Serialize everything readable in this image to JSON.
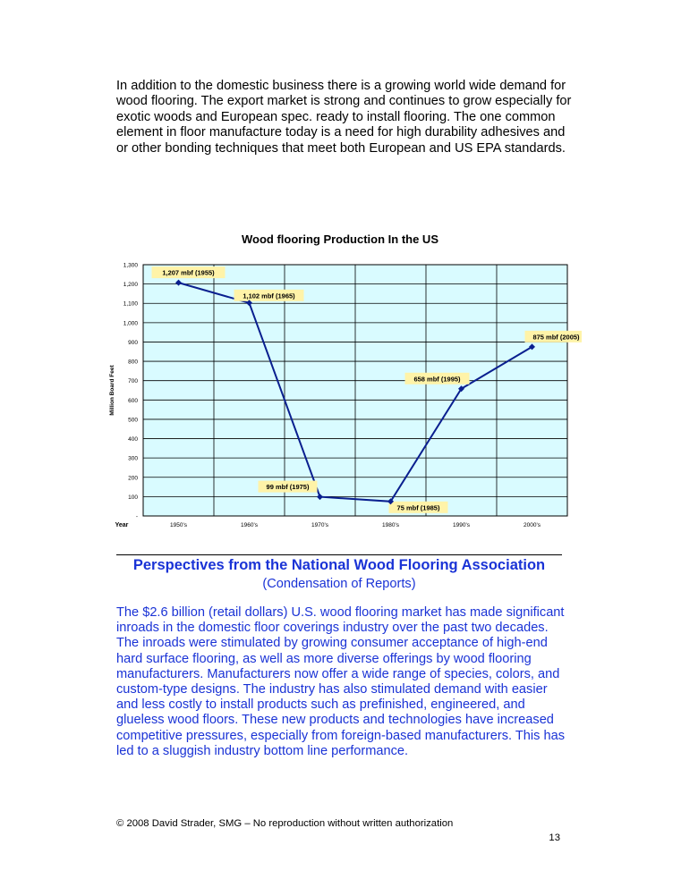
{
  "intro": {
    "paragraph": "In addition to the domestic business there is a growing world wide demand for wood flooring.  The export market is strong and continues to grow especially for exotic woods and European spec. ready to install flooring. The one common element in floor manufacture today is a need for high durability adhesives and or other bonding techniques that meet both European and US EPA standards."
  },
  "chart_data": {
    "type": "line",
    "title": "Wood flooring Production In the US",
    "xlabel": "Year",
    "ylabel": "Million Board Feet",
    "categories": [
      "1950's",
      "1960's",
      "1970's",
      "1980's",
      "1990's",
      "2000's"
    ],
    "series": [
      {
        "values": [
          1207,
          1102,
          99,
          75,
          658,
          875
        ]
      }
    ],
    "data_labels": [
      "1,207 mbf (1955)",
      "1,102 mbf (1965)",
      "99 mbf (1975)",
      "75 mbf (1985)",
      "658 mbf (1995)",
      "875 mbf (2005)"
    ],
    "y_ticks": [
      "-",
      "100",
      "200",
      "300",
      "400",
      "500",
      "600",
      "700",
      "800",
      "900",
      "1,000",
      "1,100",
      "1,200",
      "1,300"
    ],
    "ylim": [
      0,
      1300
    ],
    "grid": true,
    "colors": {
      "plot_background": "#d9fbff",
      "line": "#0a1f8f",
      "label_background": "#fff3a8"
    }
  },
  "section": {
    "title": "Perspectives from the National Wood Flooring Association",
    "subtitle": "(Condensation of Reports)",
    "body": "The $2.6 billion (retail dollars) U.S. wood flooring market has made significant inroads in the domestic floor coverings industry over the past two decades. The inroads were stimulated by growing consumer acceptance of high-end hard surface flooring, as well as more diverse offerings by wood flooring manufacturers. Manufacturers now offer a wide range of species, colors, and custom-type designs. The industry has also stimulated demand with easier and less costly to install products such as prefinished, engineered, and glueless wood floors. These new products and technologies have increased competitive pressures, especially from foreign-based manufacturers. This has led to a sluggish industry bottom line performance."
  },
  "footer": {
    "copyright": "© 2008 David Strader, SMG – No reproduction without written authorization",
    "page_number": "13"
  }
}
